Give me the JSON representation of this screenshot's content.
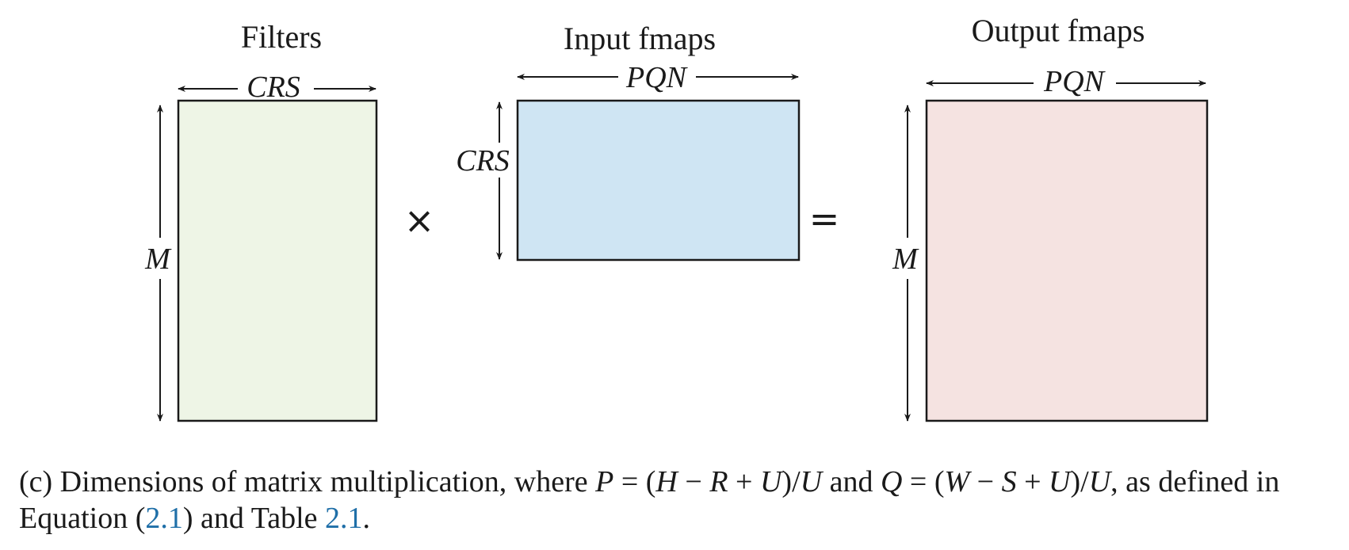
{
  "colors": {
    "filters_fill": "#eef5e6",
    "input_fill": "#cfe5f3",
    "output_fill": "#f5e3e1",
    "stroke": "#1a1a1a",
    "link": "#1f6fa8"
  },
  "filters": {
    "title": "Filters",
    "width_label": "CRS",
    "height_label": "M"
  },
  "input": {
    "title": "Input fmaps",
    "width_label": "PQN",
    "height_label": "CRS"
  },
  "output": {
    "title": "Output fmaps",
    "width_label": "PQN",
    "height_label": "M"
  },
  "operators": {
    "times": "×",
    "equals": "="
  },
  "caption": {
    "prefix": "(c) Dimensions of matrix multiplication, where ",
    "p_var": "P",
    "p_expr_1": " = (",
    "h_var": "H",
    "minus_1": " − ",
    "r_var": "R",
    "plus_1": " + ",
    "u_var_1": "U",
    "close_1": ")/",
    "u_var_2": "U",
    "and": " and ",
    "q_var": "Q",
    "q_expr_1": " = (",
    "w_var": "W",
    "minus_2": " − ",
    "s_var": "S",
    "plus_2": " + ",
    "u_var_3": "U",
    "close_2": ")/",
    "u_var_4": "U",
    "as_defined": ", as defined in",
    "line2_prefix": "Equation (",
    "eq_ref": "2.1",
    "line2_mid": ") and Table ",
    "table_ref": "2.1",
    "line2_end": "."
  }
}
